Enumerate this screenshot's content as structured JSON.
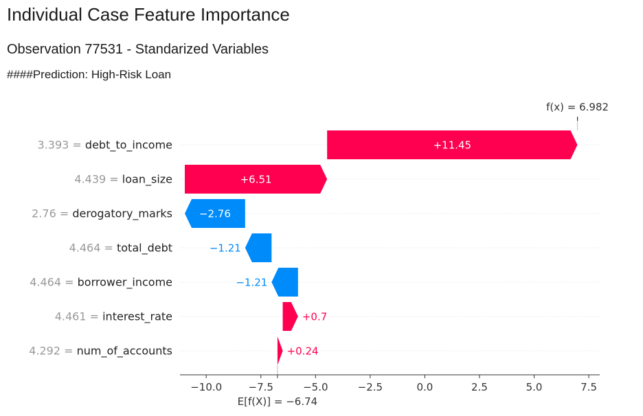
{
  "page": {
    "title": "Individual Case Feature Importance",
    "subtitle": "Observation 77531 - Standarized Variables",
    "prediction_line": "####Prediction: High-Risk Loan"
  },
  "chart_data": {
    "type": "waterfall",
    "base_value": -6.74,
    "base_label": "E[f(X)] = −6.74",
    "output_value": 6.982,
    "output_label": "f(x) = 6.982",
    "xlim": [
      -11.2,
      8.0
    ],
    "x_ticks": [
      -10.0,
      -7.5,
      -5.0,
      -2.5,
      0.0,
      2.5,
      5.0,
      7.5
    ],
    "x_tick_labels": [
      "−10.0",
      "−7.5",
      "−5.0",
      "−2.5",
      "0.0",
      "2.5",
      "5.0",
      "7.5"
    ],
    "features": [
      {
        "name": "debt_to_income",
        "value_label": "3.393",
        "contribution": 11.45,
        "label": "+11.45"
      },
      {
        "name": "loan_size",
        "value_label": "4.439",
        "contribution": 6.51,
        "label": "+6.51"
      },
      {
        "name": "derogatory_marks",
        "value_label": "2.76",
        "contribution": -2.76,
        "label": "−2.76"
      },
      {
        "name": "total_debt",
        "value_label": "4.464",
        "contribution": -1.21,
        "label": "−1.21"
      },
      {
        "name": "borrower_income",
        "value_label": "4.464",
        "contribution": -1.21,
        "label": "−1.21"
      },
      {
        "name": "interest_rate",
        "value_label": "4.461",
        "contribution": 0.7,
        "label": "+0.7"
      },
      {
        "name": "num_of_accounts",
        "value_label": "4.292",
        "contribution": 0.24,
        "label": "+0.24"
      }
    ],
    "colors": {
      "positive": "#ff0051",
      "negative": "#008bfb",
      "axis": "#333333",
      "grid": "#dddddd",
      "muted": "#999999"
    }
  }
}
